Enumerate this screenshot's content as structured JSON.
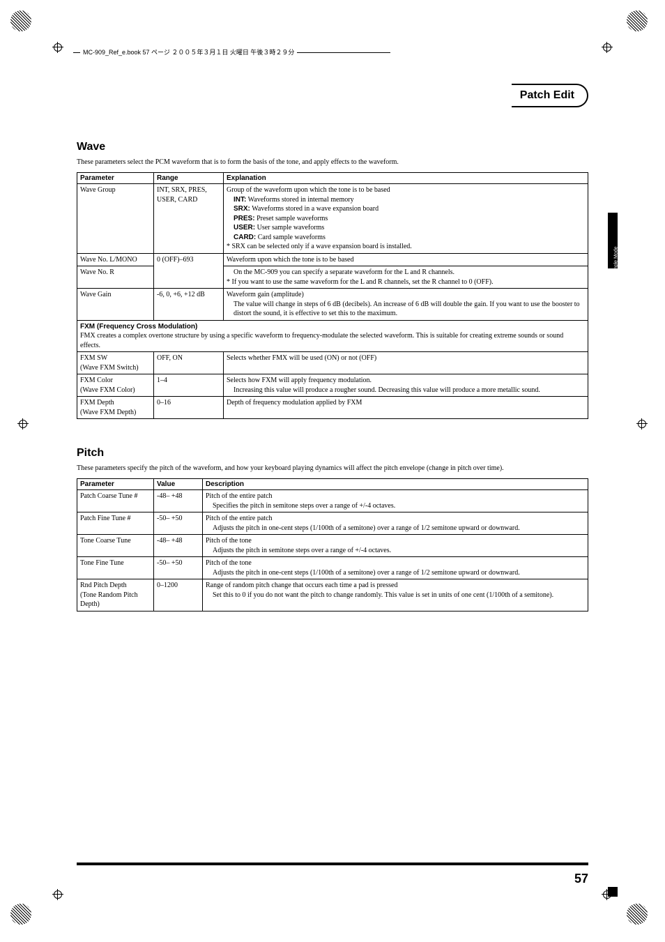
{
  "header_text": "MC-909_Ref_e.book 57 ページ ２００５年３月１日 火曜日 午後３時２９分",
  "title_bar": "Patch Edit",
  "side_tab": "Patch/Sample Mode",
  "page_number": "57",
  "wave": {
    "heading": "Wave",
    "intro": "These parameters select the PCM waveform that is to form the basis of the tone, and apply effects to the waveform.",
    "headers": {
      "c1": "Parameter",
      "c2": "Range",
      "c3": "Explanation"
    },
    "rows": {
      "r1": {
        "param": "Wave Group",
        "range": "INT, SRX, PRES, USER, CARD",
        "line1": "Group of the waveform upon which the tone is to be based",
        "int_label": "INT:",
        "int": " Waveforms stored in internal memory",
        "srx_label": "SRX:",
        "srx": " Waveforms stored in a wave expansion board",
        "pres_label": "PRES:",
        "pres": " Preset sample waveforms",
        "user_label": "USER:",
        "user": " User sample waveforms",
        "card_label": "CARD:",
        "card": " Card sample waveforms",
        "note": "* SRX can be selected only if a wave expansion board is installed."
      },
      "r2": {
        "param": "Wave No. L/MONO",
        "range": "0 (OFF)–693",
        "exp": "Waveform upon which the tone is to be based"
      },
      "r3": {
        "param": "Wave No. R",
        "line1": "On the MC-909 you can specify a separate waveform for the L and R channels.",
        "note": "* If you want to use the same waveform for the L and R channels, set the R channel to 0 (OFF)."
      },
      "r4": {
        "param": "Wave Gain",
        "range": "-6, 0, +6, +12 dB",
        "line1": "Waveform gain (amplitude)",
        "line2": "The value will change in steps of 6 dB (decibels). An increase of 6 dB will double the gain. If you want to use the booster to distort the sound, it is effective to set this to the maximum."
      },
      "sub": {
        "title": "FXM (Frequency Cross Modulation)",
        "desc": "FMX creates a complex overtone structure by using a specific waveform to frequency-modulate the selected waveform. This is suitable for creating extreme sounds or sound effects."
      },
      "r5": {
        "param": "FXM SW\n(Wave FXM Switch)",
        "range": "OFF, ON",
        "exp": "Selects whether FMX will be used (ON) or not (OFF)"
      },
      "r6": {
        "param": "FXM Color\n(Wave FXM Color)",
        "range": "1–4",
        "line1": "Selects how FXM will apply frequency modulation.",
        "line2": "Increasing this value will produce a rougher sound. Decreasing this value will produce a more metallic sound."
      },
      "r7": {
        "param": "FXM Depth\n(Wave FXM Depth)",
        "range": "0–16",
        "exp": "Depth of frequency modulation applied by FXM"
      }
    }
  },
  "pitch": {
    "heading": "Pitch",
    "intro": "These parameters specify the pitch of the waveform, and how your keyboard playing dynamics will affect the pitch envelope (change in pitch over time).",
    "headers": {
      "c1": "Parameter",
      "c2": "Value",
      "c3": "Description"
    },
    "rows": {
      "r1": {
        "param": "Patch Coarse Tune #",
        "value": "-48– +48",
        "line1": "Pitch of the entire patch",
        "line2": "Specifies the pitch in semitone steps over a range of +/-4 octaves."
      },
      "r2": {
        "param": "Patch Fine Tune #",
        "value": "-50– +50",
        "line1": "Pitch of the entire patch",
        "line2": "Adjusts the pitch in one-cent steps (1/100th of a semitone) over a range of 1/2 semitone upward or downward."
      },
      "r3": {
        "param": "Tone Coarse Tune",
        "value": "-48– +48",
        "line1": "Pitch of the tone",
        "line2": "Adjusts the pitch in semitone steps over a range of +/-4 octaves."
      },
      "r4": {
        "param": "Tone Fine Tune",
        "value": "-50– +50",
        "line1": "Pitch of the tone",
        "line2": "Adjusts the pitch in one-cent steps (1/100th of a semitone) over a range of 1/2 semitone upward or downward."
      },
      "r5": {
        "param": "Rnd Pitch Depth\n(Tone Random Pitch Depth)",
        "value": "0–1200",
        "line1": "Range of random pitch change that occurs each time a pad is pressed",
        "line2": "Set this to 0 if you do not want the pitch to change randomly. This value is set in units of one cent (1/100th of a semitone)."
      }
    }
  }
}
